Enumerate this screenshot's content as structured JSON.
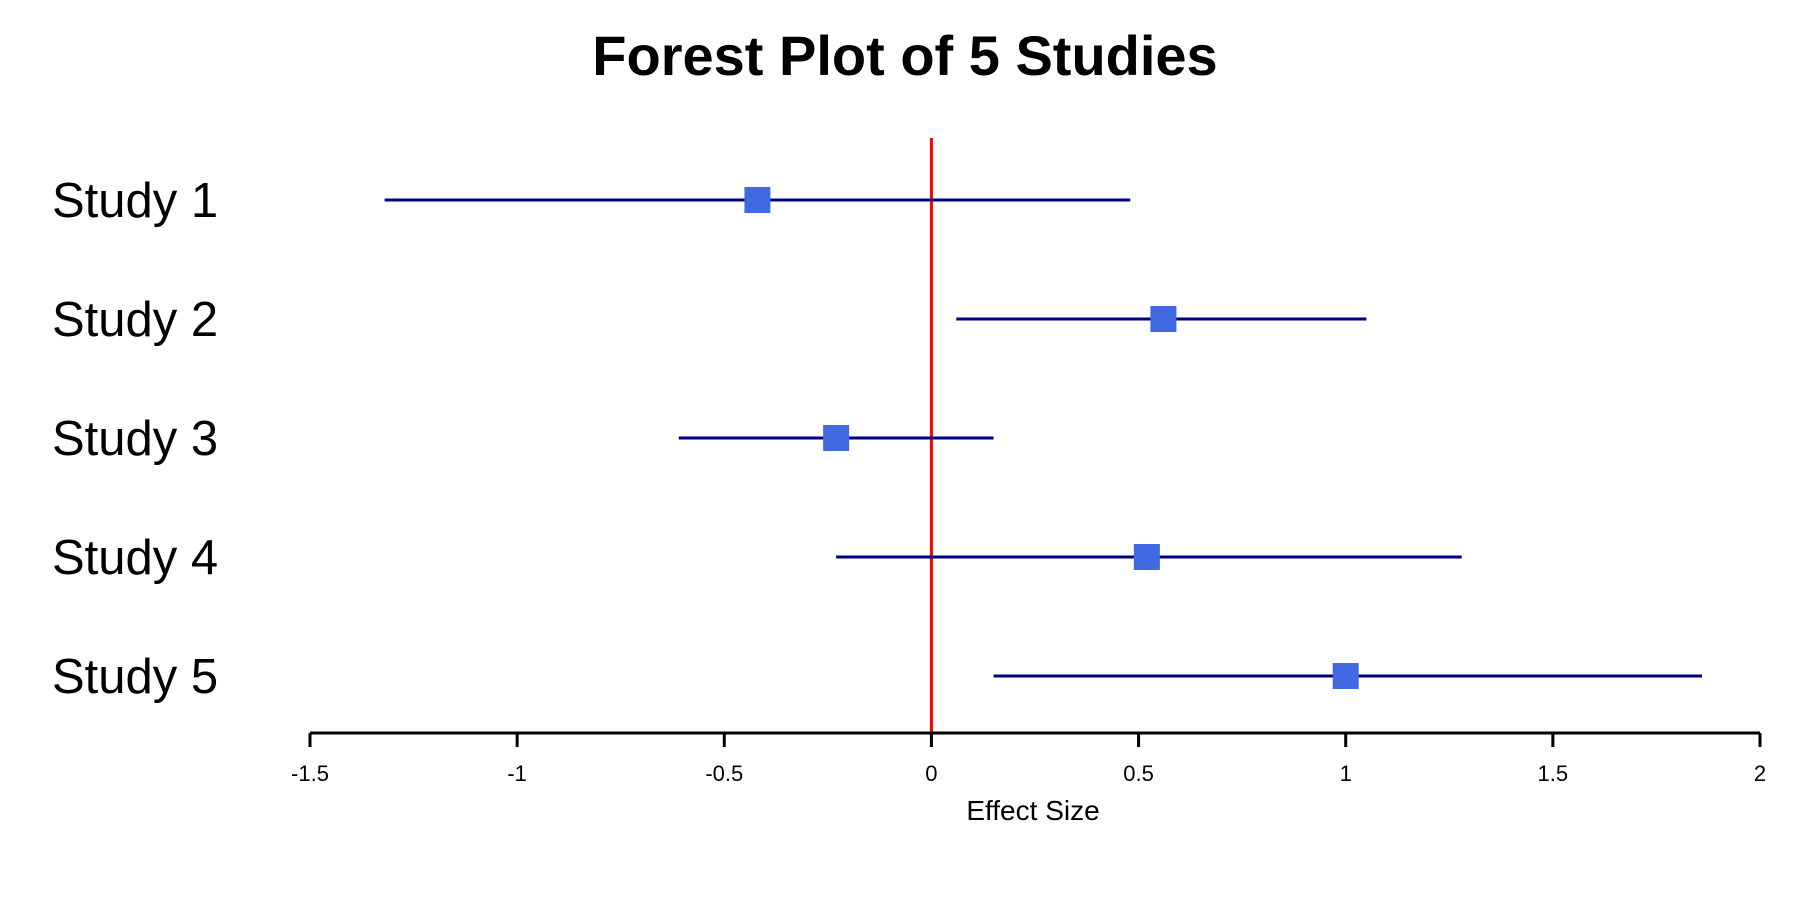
{
  "chart_data": {
    "type": "forest",
    "title": "Forest Plot of 5 Studies",
    "xlabel": "Effect Size",
    "ylabel": "",
    "xlim": [
      -1.5,
      2
    ],
    "xticks": [
      -1.5,
      -1,
      -0.5,
      0,
      0.5,
      1,
      1.5,
      2
    ],
    "xtick_labels": [
      "-1.5",
      "-1",
      "-0.5",
      "0",
      "0.5",
      "1",
      "1.5",
      "2"
    ],
    "reference_line": 0,
    "grid": false,
    "legend": "none",
    "studies": [
      {
        "label": "Study 1",
        "estimate": -0.42,
        "lower": -1.32,
        "upper": 0.48
      },
      {
        "label": "Study 2",
        "estimate": 0.56,
        "lower": 0.06,
        "upper": 1.05
      },
      {
        "label": "Study 3",
        "estimate": -0.23,
        "lower": -0.61,
        "upper": 0.15
      },
      {
        "label": "Study 4",
        "estimate": 0.52,
        "lower": -0.23,
        "upper": 1.28
      },
      {
        "label": "Study 5",
        "estimate": 1.0,
        "lower": 0.15,
        "upper": 1.86
      }
    ],
    "colors": {
      "ci_line": "#000080",
      "point": "#4169E1",
      "reference_line": "#FF0000",
      "axis": "#000000"
    }
  }
}
